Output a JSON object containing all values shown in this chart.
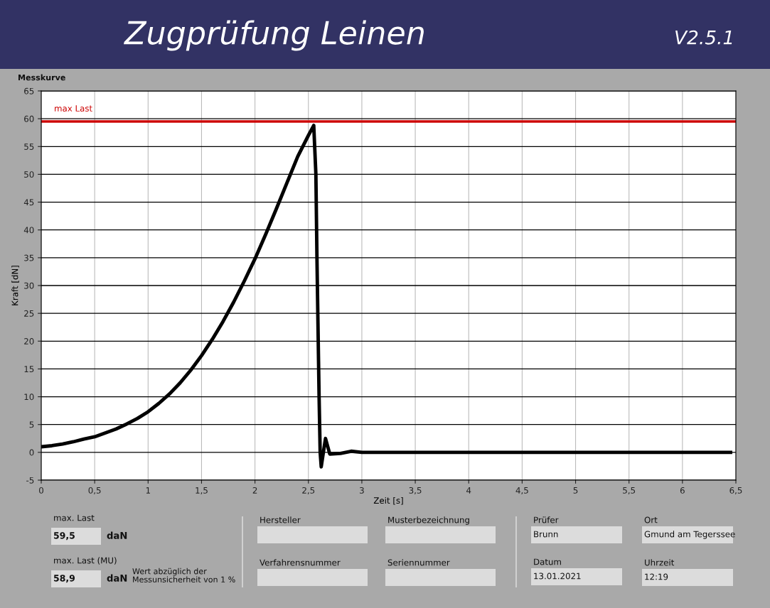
{
  "chart_data": {
    "type": "line",
    "title": "Zugprüfung Leinen",
    "xlabel": "Zeit [s]",
    "ylabel": "Kraft [dN]",
    "xlim": [
      0,
      6.5
    ],
    "ylim": [
      -5,
      65
    ],
    "xticks": [
      0,
      {
        "value": 0.5,
        "label": "0,5"
      },
      1,
      {
        "value": 1.5,
        "label": "1,5"
      },
      2,
      {
        "value": 2.5,
        "label": "2,5"
      },
      3,
      {
        "value": 3.5,
        "label": "3,5"
      },
      4,
      {
        "value": 4.5,
        "label": "4,5"
      },
      5,
      {
        "value": 5.5,
        "label": "5,5"
      },
      6,
      {
        "value": 6.5,
        "label": "6,5"
      }
    ],
    "yticks": [
      -5,
      0,
      5,
      10,
      15,
      20,
      25,
      30,
      35,
      40,
      45,
      50,
      55,
      60,
      65
    ],
    "grid": true,
    "legend": false,
    "marker": "none",
    "line_style": "solid",
    "series": [
      {
        "color": "#000000",
        "x": [
          0,
          0.1,
          0.2,
          0.3,
          0.4,
          0.5,
          0.6,
          0.7,
          0.8,
          0.9,
          1.0,
          1.1,
          1.2,
          1.3,
          1.4,
          1.5,
          1.6,
          1.7,
          1.8,
          1.9,
          2.0,
          2.1,
          2.2,
          2.3,
          2.4,
          2.5,
          2.55,
          2.57,
          2.58,
          2.6,
          2.61,
          2.62,
          2.64,
          2.66,
          2.7,
          2.8,
          2.9,
          3.0,
          3.5,
          4.0,
          4.5,
          5.0,
          5.5,
          6.0,
          6.45
        ],
        "values": [
          1,
          1.2,
          1.5,
          1.9,
          2.4,
          2.8,
          3.5,
          4.2,
          5.1,
          6.1,
          7.3,
          8.8,
          10.5,
          12.5,
          14.8,
          17.4,
          20.3,
          23.5,
          27,
          30.8,
          34.8,
          39.2,
          43.8,
          48.5,
          53.2,
          57,
          58.8,
          50,
          35,
          10,
          0,
          -2.6,
          0,
          2.5,
          -0.3,
          -0.2,
          0.2,
          0,
          0,
          0,
          0,
          0,
          0,
          0,
          0
        ]
      }
    ],
    "ref_lines": [
      {
        "axis": "y",
        "value": 59.5,
        "label": "max Last",
        "color": "#cc0000",
        "line_style": "solid"
      }
    ],
    "annotations": [
      "Messkurve",
      "V2.5.1",
      "max. Last",
      "59,5",
      "daN",
      "max. Last (MU)",
      "58,9",
      "daN",
      "Wert abzüglich der\nMessunsicherheit von 1 %",
      "Hersteller",
      "Musterbezeichnung",
      "Verfahrensnummer",
      "Seriennummer",
      "Prüfer",
      "Brunn",
      "Ort",
      "Gmund am Tegerssee",
      "Datum",
      "13.01.2021",
      "Uhrzeit",
      "12:19"
    ]
  }
}
